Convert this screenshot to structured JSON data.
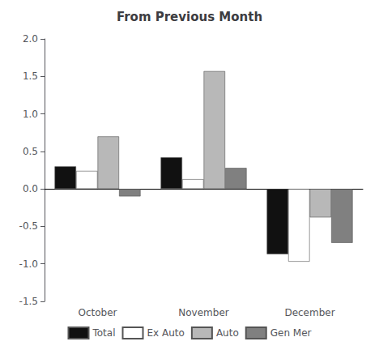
{
  "chart_data": {
    "type": "bar",
    "title": "From Previous Month",
    "categories": [
      "October",
      "November",
      "December"
    ],
    "series": [
      {
        "name": "Total",
        "color": "#111111",
        "values": [
          0.3,
          0.42,
          -0.87
        ]
      },
      {
        "name": "Ex Auto",
        "color": "#ffffff",
        "values": [
          0.24,
          0.13,
          -0.97
        ]
      },
      {
        "name": "Auto",
        "color": "#b8b8b8",
        "values": [
          0.7,
          1.57,
          -0.38
        ]
      },
      {
        "name": "Gen Mer",
        "color": "#808080",
        "values": [
          -0.1,
          0.28,
          -0.72
        ]
      }
    ],
    "ylim": [
      -1.5,
      2.0
    ],
    "yticks": [
      -1.5,
      {
        "value": -1.0,
        "label": "-1.0"
      },
      -0.5,
      {
        "value": 0.0,
        "label": "0.0"
      },
      0.5,
      {
        "value": 1.0,
        "label": "1.0"
      },
      1.5,
      {
        "value": 2.0,
        "label": "2.0"
      }
    ],
    "grid": false,
    "legend": "bottom"
  }
}
